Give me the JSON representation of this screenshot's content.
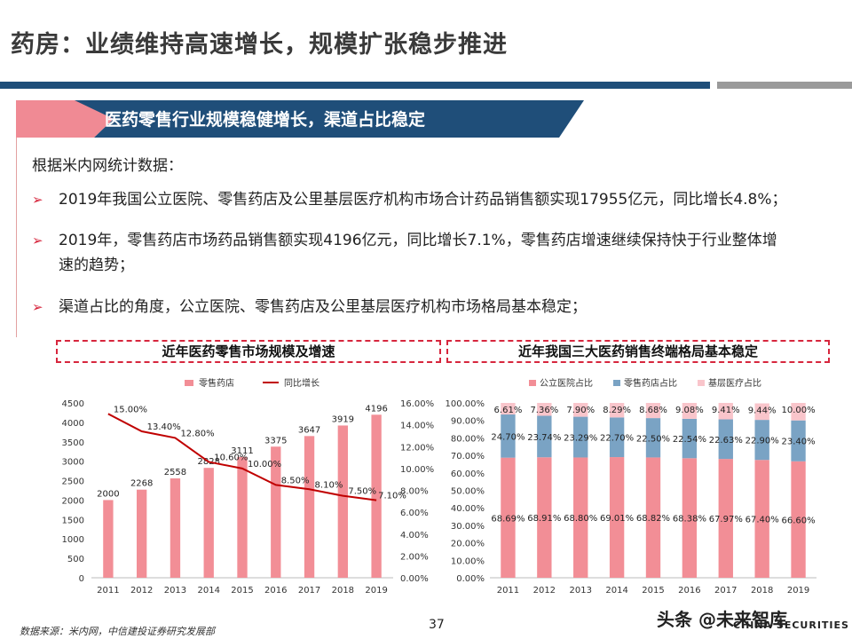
{
  "header": {
    "title": "药房：业绩维持高速增长，规模扩张稳步推进"
  },
  "banner": {
    "text": "医药零售行业规模稳健增长，渠道占比稳定"
  },
  "intro": "根据米内网统计数据：",
  "bullets": [
    {
      "marker": "➢",
      "lines": [
        "2019年我国公立医院、零售药店及公里基层医疗机构市场合计药品销售额实现17955亿元，同比增长4.8%；"
      ]
    },
    {
      "marker": "➢",
      "lines": [
        "2019年，零售药店市场药品销售额实现4196亿元，同比增长7.1%，零售药店增速继续保持快于行业整体增",
        "速的趋势；"
      ]
    },
    {
      "marker": "➢",
      "lines": [
        "渠道占比的角度，公立医院、零售药店及公里基层医疗机构市场格局基本稳定；"
      ]
    }
  ],
  "panels": {
    "left_title": "近年医药零售市场规模及增速",
    "right_title": "近年我国三大医药销售终端格局基本稳定"
  },
  "chart_data": [
    {
      "type": "bar",
      "title": "近年医药零售市场规模及增速",
      "categories": [
        "2011",
        "2012",
        "2013",
        "2014",
        "2015",
        "2016",
        "2017",
        "2018",
        "2019"
      ],
      "series": [
        {
          "name": "零售药店",
          "type": "bar",
          "axis": "left",
          "color": "#f28e96",
          "values": [
            2000,
            2268,
            2558,
            2828,
            3111,
            3375,
            3647,
            3919,
            4196
          ],
          "labels": [
            "2000",
            "2268",
            "2558",
            "2828",
            "3111",
            "3375",
            "3647",
            "3919",
            "4196"
          ]
        },
        {
          "name": "同比增长",
          "type": "line",
          "axis": "right",
          "color": "#c00000",
          "values": [
            15.0,
            13.4,
            12.8,
            10.6,
            10.0,
            8.5,
            8.1,
            7.5,
            7.1
          ],
          "labels": [
            "15.00%",
            "13.40%",
            "12.80%",
            "10.60%",
            "10.00%",
            "8.50%",
            "8.10%",
            "7.50%",
            "7.10%"
          ]
        }
      ],
      "yticks_left": [
        "0",
        "500",
        "1000",
        "1500",
        "2000",
        "2500",
        "3000",
        "3500",
        "4000",
        "4500"
      ],
      "yticks_right": [
        "0.00%",
        "2.00%",
        "4.00%",
        "6.00%",
        "8.00%",
        "10.00%",
        "12.00%",
        "14.00%",
        "16.00%"
      ],
      "ylim_left": [
        0,
        4500
      ],
      "ylim_right": [
        0,
        16
      ],
      "legend": "top"
    },
    {
      "type": "bar",
      "stacked": true,
      "title": "近年我国三大医药销售终端格局基本稳定",
      "categories": [
        "2011",
        "2012",
        "2013",
        "2014",
        "2015",
        "2016",
        "2017",
        "2018",
        "2019"
      ],
      "series": [
        {
          "name": "公立医院占比",
          "color": "#f28e96",
          "values": [
            68.69,
            68.91,
            68.8,
            69.01,
            68.82,
            68.38,
            67.97,
            67.4,
            66.6
          ],
          "labels": [
            "68.69%",
            "68.91%",
            "68.80%",
            "69.01%",
            "68.82%",
            "68.38%",
            "67.97%",
            "67.40%",
            "66.60%"
          ]
        },
        {
          "name": "零售药店占比",
          "color": "#7aa3c4",
          "values": [
            24.7,
            23.74,
            23.29,
            22.7,
            22.5,
            22.54,
            22.63,
            22.9,
            23.4
          ],
          "labels": [
            "24.70%",
            "23.74%",
            "23.29%",
            "22.70%",
            "22.50%",
            "22.54%",
            "22.63%",
            "22.90%",
            "23.40%"
          ]
        },
        {
          "name": "基层医疗占比",
          "color": "#f9c5cb",
          "values": [
            6.61,
            7.36,
            7.9,
            8.29,
            8.68,
            9.08,
            9.41,
            9.44,
            10.0
          ],
          "labels": [
            "6.61%",
            "7.36%",
            "7.90%",
            "8.29%",
            "8.68%",
            "9.08%",
            "9.41%",
            "9.44%",
            "10.00%"
          ]
        }
      ],
      "yticks": [
        "0.00%",
        "10.00%",
        "20.00%",
        "30.00%",
        "40.00%",
        "50.00%",
        "60.00%",
        "70.00%",
        "80.00%",
        "90.00%",
        "100.00%"
      ],
      "ylim": [
        0,
        100
      ],
      "legend": "top"
    }
  ],
  "footer": {
    "source": "数据来源：米内网，中信建投证券研究发展部",
    "page": "37",
    "watermark": "头条 @未来智库",
    "logo_text": "CHINA SECURITIES"
  },
  "colors": {
    "brand_blue": "#1f4e79",
    "accent_red": "#d7263d",
    "bar_pink": "#f28e96",
    "line_red": "#c00000",
    "steel_blue": "#7aa3c4",
    "light_pink": "#f9c5cb"
  }
}
